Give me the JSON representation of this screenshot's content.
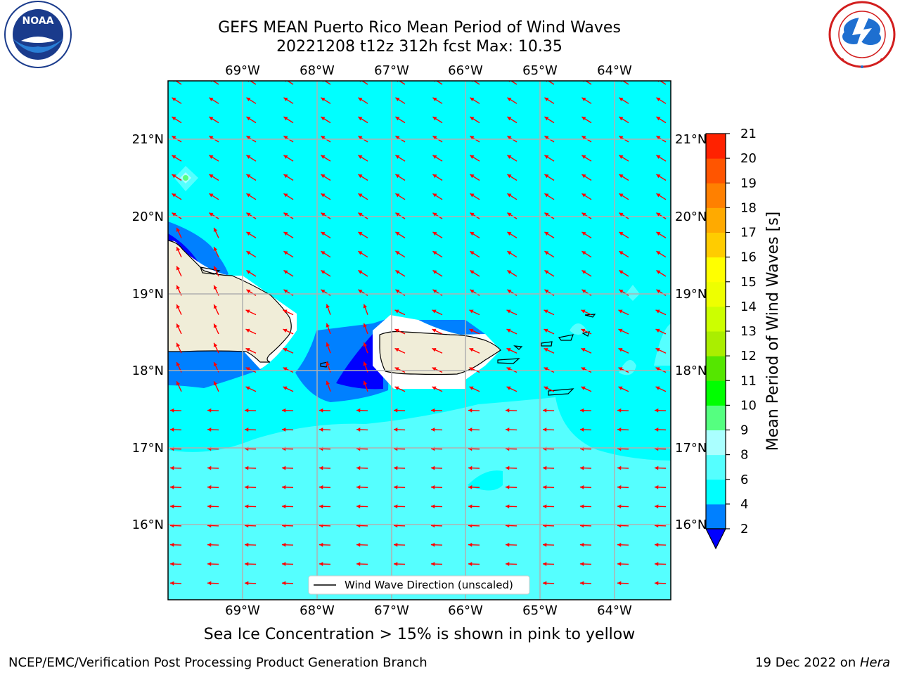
{
  "header": {
    "title_line1": "GEFS MEAN Puerto Rico Mean Period of Wind Waves",
    "title_line2": "20221208 t12z 312h fcst   Max: 10.35"
  },
  "logos": {
    "left": {
      "name": "noaa-logo",
      "text": "NOAA",
      "ring_text": "NATIONAL OCEANIC AND ATMOSPHERIC ADMINISTRATION · U.S. DEPARTMENT OF COMMERCE"
    },
    "right": {
      "name": "nws-logo",
      "ring_text": "NATIONAL WEATHER SERVICE"
    }
  },
  "map": {
    "lon_labels": [
      "69°W",
      "68°W",
      "67°W",
      "66°W",
      "65°W",
      "64°W"
    ],
    "lat_labels": [
      "21°N",
      "20°N",
      "19°N",
      "18°N",
      "17°N",
      "16°N"
    ],
    "legend_text": "Wind Wave Direction (unscaled)",
    "colors": {
      "ocean_base": "#00ffff",
      "light_band": "#55ffff",
      "blue_band": "#0080ff",
      "dark_blue": "#0000ff",
      "land": "#f0edd8",
      "arrow": "#ff0000",
      "grid": "#b0b0b0"
    }
  },
  "colorbar": {
    "label": "Mean Period of Wind Waves [s]",
    "ticks": [
      "2",
      "4",
      "6",
      "8",
      "9",
      "10",
      "11",
      "12",
      "13",
      "14",
      "15",
      "16",
      "17",
      "18",
      "19",
      "20",
      "21"
    ],
    "colors": [
      "#0080ff",
      "#00ffff",
      "#55ffff",
      "#aaffff",
      "#55ff80",
      "#00ff00",
      "#55e600",
      "#aaee00",
      "#ccff00",
      "#eeff00",
      "#ffff00",
      "#ffcc00",
      "#ffaa00",
      "#ff8000",
      "#ff5500",
      "#ff2200",
      "#ff0000"
    ],
    "under_color": "#0000ff"
  },
  "caption": "Sea Ice Concentration > 15% is shown in pink to yellow",
  "footer": {
    "left": "NCEP/EMC/Verification Post Processing Product Generation Branch",
    "right_prefix": "19 Dec 2022 on ",
    "right_host": "Hera"
  }
}
